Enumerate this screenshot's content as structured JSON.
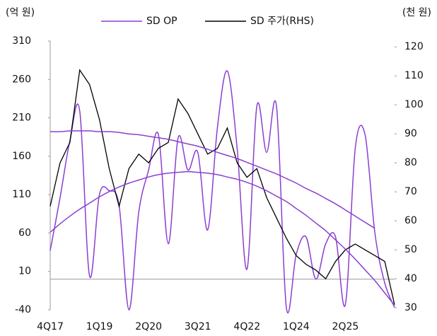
{
  "chart_data": {
    "type": "line",
    "y_unit": "(억 원)",
    "y2_unit": "(천 원)",
    "categories": [
      "4Q17",
      null,
      null,
      null,
      null,
      "1Q19",
      null,
      null,
      null,
      null,
      "2Q20",
      null,
      null,
      null,
      null,
      "3Q21",
      null,
      null,
      null,
      null,
      "4Q22",
      null,
      null,
      null,
      null,
      "1Q24",
      null,
      null,
      null,
      null,
      "2Q25",
      null,
      null,
      null,
      null,
      null
    ],
    "ylim": [
      -40,
      310
    ],
    "yticks": [
      -40,
      10,
      60,
      110,
      160,
      210,
      260,
      310
    ],
    "y2lim": [
      29.3,
      122
    ],
    "y2ticks": [
      30,
      40,
      50,
      60,
      70,
      80,
      90,
      100,
      110,
      120
    ],
    "series": [
      {
        "name": "SD OP",
        "color": "#8a3fd1",
        "smooth": true,
        "values": [
          37,
          106,
          180,
          219,
          4,
          110,
          115,
          96,
          -40,
          87,
          142,
          188,
          46,
          184,
          142,
          165,
          64,
          198,
          271,
          170,
          13,
          225,
          165,
          225,
          -37,
          32,
          55,
          0,
          46,
          55,
          -33,
          170,
          188,
          60,
          -5,
          -37
        ]
      },
      {
        "name": "SD 주가(RHS)",
        "color": "#000000",
        "axis": "y2",
        "values": [
          65,
          80,
          87,
          112,
          107,
          95,
          78,
          65,
          78,
          83,
          80,
          85,
          87,
          102,
          97,
          90,
          83,
          85,
          92,
          80,
          75,
          78,
          68,
          61,
          54,
          48,
          45,
          43,
          40,
          46,
          50,
          52,
          50,
          48,
          46,
          31
        ]
      },
      {
        "color": "#8a3fd1",
        "smooth": true,
        "values": [
          192,
          192,
          193,
          193,
          193,
          192,
          192,
          191,
          189,
          188,
          186,
          184,
          182,
          179,
          176,
          173,
          169,
          165,
          161,
          157,
          152,
          147,
          142,
          137,
          131,
          125,
          118,
          112,
          105,
          98,
          90,
          82,
          74,
          66,
          null,
          null
        ]
      },
      {
        "color": "#8a3fd1",
        "smooth": true,
        "values": [
          61,
          72,
          82,
          91,
          99,
          107,
          114,
          120,
          125,
          129,
          133,
          136,
          138,
          139,
          140,
          139,
          138,
          136,
          133,
          130,
          126,
          121,
          115,
          108,
          101,
          92,
          83,
          73,
          63,
          51,
          39,
          26,
          12,
          -2,
          -18,
          -34
        ]
      }
    ]
  }
}
